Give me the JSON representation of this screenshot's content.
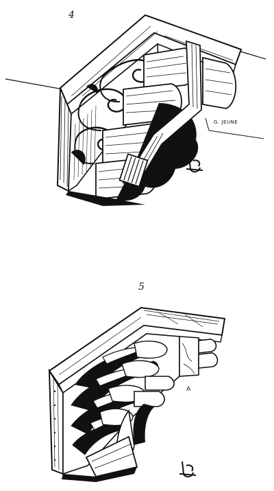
{
  "figures": [
    {
      "number": "4",
      "signature": "G. JEUNE",
      "monogram": ""
    },
    {
      "number": "5",
      "letter_a": "A",
      "letter_b": "B",
      "monogram": ""
    }
  ],
  "colors": {
    "ink": "#111111",
    "paper": "#ffffff"
  }
}
